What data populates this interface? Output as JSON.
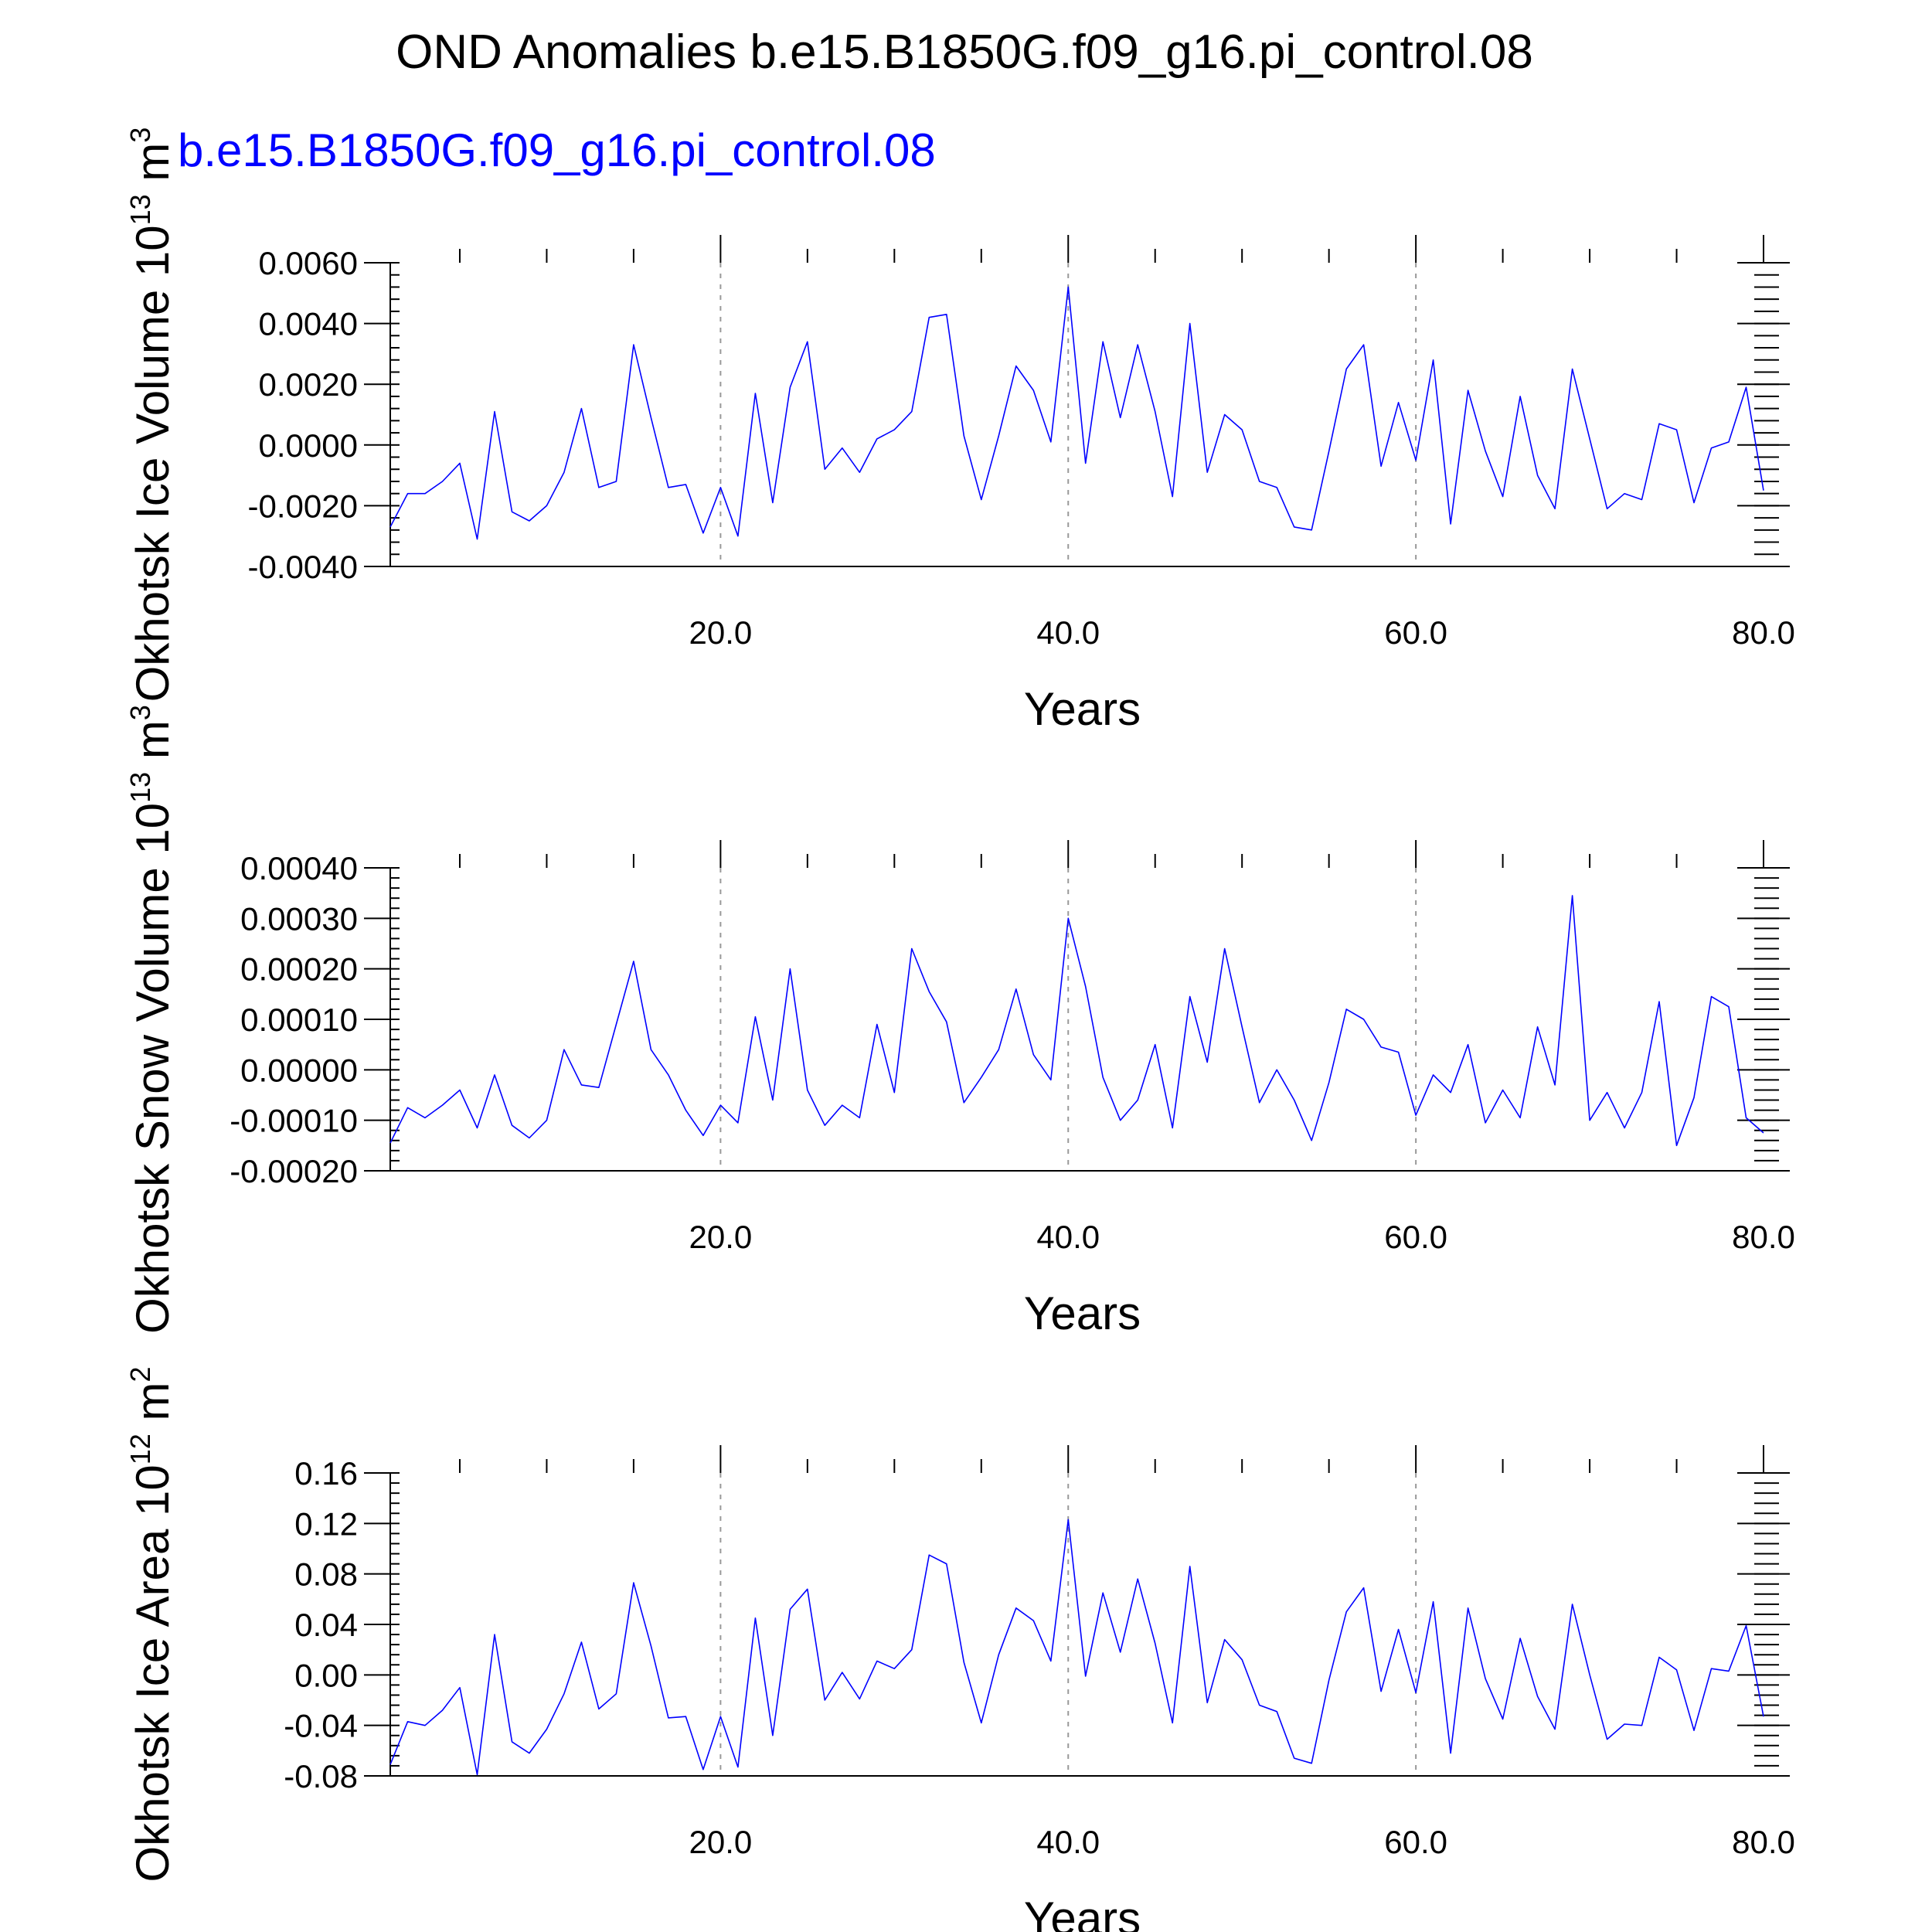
{
  "title": "OND Anomalies b.e15.B1850G.f09_g16.pi_control.08",
  "case_label": "b.e15.B1850G.f09_g16.pi_control.08",
  "colors": {
    "series": "#0000ff",
    "case_label": "#0000ff",
    "axes": "#000000",
    "grid": "#999999"
  },
  "chart_data": [
    {
      "type": "line",
      "xlabel": "Years",
      "ylabel": "Okhotsk Ice Volume 10",
      "ylabel_exp": "13",
      "ylabel_unit": " m",
      "ylabel_unit_exp": "3",
      "xlim": [
        1,
        80
      ],
      "ylim": [
        -0.004,
        0.006
      ],
      "xticks": [
        20,
        40,
        60,
        80
      ],
      "xtick_labels": [
        "20.0",
        "40.0",
        "60.0",
        "80.0"
      ],
      "yticks": [
        -0.004,
        -0.002,
        0,
        0.002,
        0.004,
        0.006
      ],
      "ytick_labels": [
        "-0.0040",
        "-0.0020",
        "0.0000",
        "0.0020",
        "0.0040",
        "0.0060"
      ],
      "vlines": [
        20,
        40,
        60
      ],
      "series": [
        {
          "x_start": 1,
          "values": [
            -0.0027,
            -0.0016,
            -0.0016,
            -0.0012,
            -0.0006,
            -0.0031,
            0.0011,
            -0.0022,
            -0.0025,
            -0.002,
            -0.0009,
            0.0012,
            -0.0014,
            -0.0012,
            0.0033,
            0.0009,
            -0.0014,
            -0.0013,
            -0.0029,
            -0.0014,
            -0.003,
            0.0017,
            -0.0019,
            0.0019,
            0.0034,
            -0.0008,
            -0.0001,
            -0.0009,
            0.0002,
            0.0005,
            0.0011,
            0.0042,
            0.0043,
            0.0003,
            -0.0018,
            0.0003,
            0.0026,
            0.0018,
            0.0001,
            0.0052,
            -0.0006,
            0.0034,
            0.0009,
            0.0033,
            0.0011,
            -0.0017,
            0.004,
            -0.0009,
            0.001,
            0.0005,
            -0.0012,
            -0.0014,
            -0.0027,
            -0.0028,
            -0.0002,
            0.0025,
            0.0033,
            -0.0007,
            0.0014,
            -0.0005,
            0.0028,
            -0.0026,
            0.0018,
            -0.0002,
            -0.0017,
            0.0016,
            -0.001,
            -0.0021,
            0.0025,
            0.0002,
            -0.0021,
            -0.0016,
            -0.0018,
            0.0007,
            0.0005,
            -0.0019,
            -0.0001,
            0.0001,
            0.0019,
            -0.0015
          ]
        }
      ]
    },
    {
      "type": "line",
      "xlabel": "Years",
      "ylabel": "Okhotsk Snow Volume 10",
      "ylabel_exp": "13",
      "ylabel_unit": " m",
      "ylabel_unit_exp": "3",
      "xlim": [
        1,
        80
      ],
      "ylim": [
        -0.0002,
        0.0004
      ],
      "xticks": [
        20,
        40,
        60,
        80
      ],
      "xtick_labels": [
        "20.0",
        "40.0",
        "60.0",
        "80.0"
      ],
      "yticks": [
        -0.0002,
        -0.0001,
        0,
        0.0001,
        0.0002,
        0.0003,
        0.0004
      ],
      "ytick_labels": [
        "-0.00020",
        "-0.00010",
        "0.00000",
        "0.00010",
        "0.00020",
        "0.00030",
        "0.00040"
      ],
      "vlines": [
        20,
        40,
        60
      ],
      "series": [
        {
          "x_start": 1,
          "values": [
            -0.000145,
            -7.5e-05,
            -9.5e-05,
            -7e-05,
            -4e-05,
            -0.000115,
            -1e-05,
            -0.00011,
            -0.000135,
            -0.0001,
            4e-05,
            -3e-05,
            -3.5e-05,
            9e-05,
            0.000215,
            4e-05,
            -1e-05,
            -8e-05,
            -0.00013,
            -7e-05,
            -0.000105,
            0.000105,
            -6e-05,
            0.0002,
            -4e-05,
            -0.00011,
            -7e-05,
            -9.5e-05,
            9e-05,
            -4.5e-05,
            0.00024,
            0.000155,
            9.5e-05,
            -6.5e-05,
            -1.5e-05,
            4e-05,
            0.00016,
            3e-05,
            -2e-05,
            0.0003,
            0.000165,
            -1.5e-05,
            -0.0001,
            -6e-05,
            5e-05,
            -0.000115,
            0.000145,
            1.5e-05,
            0.00024,
            8.5e-05,
            -6.5e-05,
            0.0,
            -6e-05,
            -0.00014,
            -2.5e-05,
            0.00012,
            0.0001,
            4.5e-05,
            3.5e-05,
            -9e-05,
            -1e-05,
            -4.5e-05,
            5e-05,
            -0.000105,
            -4e-05,
            -9.5e-05,
            8.5e-05,
            -3e-05,
            0.000345,
            -0.0001,
            -4.5e-05,
            -0.000115,
            -4.5e-05,
            0.000135,
            -0.00015,
            -5.5e-05,
            0.000145,
            0.000125,
            -9.5e-05,
            -0.000125
          ]
        }
      ]
    },
    {
      "type": "line",
      "xlabel": "Years",
      "ylabel": "Okhotsk Ice Area 10",
      "ylabel_exp": "12",
      "ylabel_unit": " m",
      "ylabel_unit_exp": "2",
      "xlim": [
        1,
        80
      ],
      "ylim": [
        -0.08,
        0.16
      ],
      "xticks": [
        20,
        40,
        60,
        80
      ],
      "xtick_labels": [
        "20.0",
        "40.0",
        "60.0",
        "80.0"
      ],
      "yticks": [
        -0.08,
        -0.04,
        0,
        0.04,
        0.08,
        0.12,
        0.16
      ],
      "ytick_labels": [
        "-0.08",
        "-0.04",
        "0.00",
        "0.04",
        "0.08",
        "0.12",
        "0.16"
      ],
      "vlines": [
        20,
        40,
        60
      ],
      "series": [
        {
          "x_start": 1,
          "values": [
            -0.071,
            -0.037,
            -0.04,
            -0.028,
            -0.01,
            -0.079,
            0.032,
            -0.053,
            -0.062,
            -0.043,
            -0.015,
            0.026,
            -0.027,
            -0.015,
            0.073,
            0.023,
            -0.034,
            -0.033,
            -0.075,
            -0.033,
            -0.073,
            0.045,
            -0.048,
            0.052,
            0.068,
            -0.02,
            0.002,
            -0.019,
            0.011,
            0.005,
            0.02,
            0.095,
            0.088,
            0.01,
            -0.038,
            0.016,
            0.053,
            0.043,
            0.011,
            0.123,
            -0.001,
            0.065,
            0.018,
            0.076,
            0.025,
            -0.038,
            0.086,
            -0.022,
            0.028,
            0.012,
            -0.024,
            -0.029,
            -0.066,
            -0.07,
            -0.004,
            0.05,
            0.069,
            -0.013,
            0.036,
            -0.014,
            0.058,
            -0.062,
            0.053,
            -0.003,
            -0.035,
            0.029,
            -0.017,
            -0.043,
            0.056,
            0.0,
            -0.051,
            -0.039,
            -0.04,
            0.014,
            0.004,
            -0.044,
            0.005,
            0.003,
            0.039,
            -0.033
          ]
        }
      ]
    }
  ]
}
